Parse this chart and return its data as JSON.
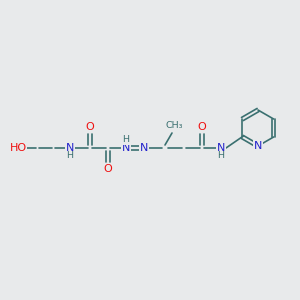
{
  "bg_color": "#e8eaeb",
  "bond_color": "#3a7070",
  "atom_colors": {
    "O": "#ee1111",
    "N": "#2222cc",
    "C": "#3a7070",
    "H": "#3a7070"
  },
  "figsize": [
    3.0,
    3.0
  ],
  "dpi": 100
}
